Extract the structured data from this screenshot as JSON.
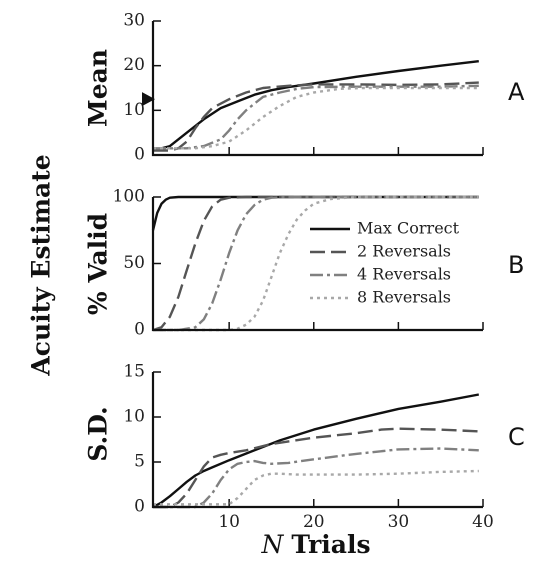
{
  "shared_ylabel": "Acuity Estimate",
  "xlabel_italic": "N",
  "xlabel_bold": "Trials",
  "styles": {
    "Max Correct": {
      "color": "#111111",
      "dash": ""
    },
    "2 Reversals": {
      "color": "#555555",
      "dash": "15,6"
    },
    "4 Reversals": {
      "color": "#808080",
      "dash": "13,4,3,4"
    },
    "8 Reversals": {
      "color": "#a8a8a8",
      "dash": "3,4"
    }
  },
  "legend": {
    "placement": "panel-B right",
    "entries": [
      "Max Correct",
      "2 Reversals",
      "4 Reversals",
      "8 Reversals"
    ]
  },
  "chart_data": [
    {
      "type": "line",
      "panel": "A",
      "ylabel": "Mean",
      "xlim": [
        1,
        40
      ],
      "ylim": [
        0,
        30
      ],
      "xticks": [
        10,
        20,
        30,
        40
      ],
      "yticks": [
        0,
        10,
        20,
        30
      ],
      "marker": {
        "shape": "triangle",
        "y": 12.5
      },
      "series": [
        {
          "name": "Max Correct",
          "x": [
            1,
            3,
            5,
            7,
            9,
            11,
            13,
            15,
            17,
            20,
            25,
            30,
            35,
            39.5
          ],
          "y": [
            1,
            2,
            5,
            8,
            10.5,
            12,
            13.5,
            14.5,
            15.2,
            16,
            17.5,
            18.8,
            20,
            21
          ]
        },
        {
          "name": "2 Reversals",
          "x": [
            1,
            3,
            4,
            5,
            6,
            7,
            8,
            10,
            12,
            14,
            17,
            20,
            25,
            30,
            35,
            39.5
          ],
          "y": [
            1,
            1,
            1.5,
            3,
            6,
            8.5,
            10.5,
            12.5,
            14,
            15,
            15.5,
            15.8,
            15.8,
            15.7,
            15.8,
            16.2
          ]
        },
        {
          "name": "4 Reversals",
          "x": [
            1,
            5,
            7,
            9,
            10,
            11,
            12,
            13,
            14,
            16,
            18,
            20,
            25,
            30,
            35,
            39.5
          ],
          "y": [
            1.5,
            1.5,
            2,
            3.5,
            5.5,
            8,
            10,
            11.5,
            13,
            14,
            14.8,
            15.2,
            15.3,
            15.3,
            15.3,
            15.5
          ]
        },
        {
          "name": "8 Reversals",
          "x": [
            1,
            6,
            8,
            10,
            12,
            14,
            16,
            18,
            20,
            23,
            26,
            30,
            35,
            39.5
          ],
          "y": [
            1.5,
            1.5,
            2,
            3,
            5.5,
            8.5,
            11,
            13,
            14,
            14.8,
            15,
            15,
            15,
            15
          ]
        }
      ]
    },
    {
      "type": "line",
      "panel": "B",
      "ylabel": "% Valid",
      "xlim": [
        1,
        40
      ],
      "ylim": [
        0,
        100
      ],
      "xticks": [
        10,
        20,
        30,
        40
      ],
      "yticks": [
        0,
        50,
        100
      ],
      "series": [
        {
          "name": "Max Correct",
          "x": [
            1,
            1.5,
            2,
            2.5,
            3,
            4,
            5,
            10,
            20,
            30,
            39.5
          ],
          "y": [
            75,
            88,
            95,
            98,
            99.5,
            100,
            100,
            100,
            100,
            100,
            100
          ]
        },
        {
          "name": "2 Reversals",
          "x": [
            1,
            2,
            3,
            4,
            5,
            6,
            7,
            8,
            9,
            10,
            12,
            15,
            20,
            30,
            39.5
          ],
          "y": [
            0,
            2,
            10,
            25,
            45,
            65,
            82,
            93,
            98,
            99.5,
            100,
            100,
            100,
            100,
            100
          ]
        },
        {
          "name": "4 Reversals",
          "x": [
            1,
            4,
            6,
            7,
            8,
            9,
            10,
            11,
            12,
            13,
            14,
            15,
            17,
            20,
            30,
            39.5
          ],
          "y": [
            0,
            0,
            2,
            8,
            20,
            38,
            58,
            75,
            87,
            94,
            98,
            99.5,
            100,
            100,
            100,
            100
          ]
        },
        {
          "name": "8 Reversals",
          "x": [
            1,
            10,
            11,
            12,
            13,
            14,
            15,
            16,
            17,
            18,
            19,
            20,
            22,
            25,
            30,
            39.5
          ],
          "y": [
            0,
            0,
            1,
            4,
            10,
            22,
            40,
            58,
            72,
            83,
            90,
            95,
            98.5,
            100,
            100,
            100
          ]
        }
      ]
    },
    {
      "type": "line",
      "panel": "C",
      "ylabel": "S.D.",
      "xlim": [
        1,
        40
      ],
      "ylim": [
        0,
        15
      ],
      "xticks": [
        10,
        20,
        30,
        40
      ],
      "yticks": [
        0,
        5,
        10,
        15
      ],
      "series": [
        {
          "name": "Max Correct",
          "x": [
            1,
            2,
            3,
            4,
            5,
            6,
            7,
            8,
            10,
            13,
            16,
            20,
            25,
            30,
            35,
            39.5
          ],
          "y": [
            0,
            0.5,
            1.2,
            2,
            2.8,
            3.5,
            4,
            4.4,
            5.2,
            6.3,
            7.4,
            8.6,
            9.8,
            10.9,
            11.7,
            12.5
          ]
        },
        {
          "name": "2 Reversals",
          "x": [
            1,
            3,
            4,
            5,
            6,
            7,
            8,
            9,
            10,
            12,
            15,
            20,
            25,
            28,
            30,
            35,
            39.5
          ],
          "y": [
            0,
            0,
            0.5,
            1.5,
            3,
            4.5,
            5.5,
            5.8,
            6,
            6.3,
            7,
            7.7,
            8.2,
            8.6,
            8.7,
            8.6,
            8.4
          ]
        },
        {
          "name": "4 Reversals",
          "x": [
            1,
            6,
            7,
            8,
            9,
            10,
            11,
            12,
            13,
            14,
            15,
            17,
            20,
            25,
            30,
            35,
            39.5
          ],
          "y": [
            0,
            0,
            0.5,
            1.5,
            3,
            4.2,
            4.8,
            5,
            5.1,
            4.9,
            4.8,
            4.9,
            5.3,
            5.9,
            6.4,
            6.5,
            6.3
          ]
        },
        {
          "name": "8 Reversals",
          "x": [
            1,
            10,
            11,
            12,
            13,
            14,
            15,
            16,
            18,
            20,
            25,
            30,
            35,
            39.5
          ],
          "y": [
            0.3,
            0.3,
            1,
            2,
            3,
            3.5,
            3.7,
            3.7,
            3.6,
            3.6,
            3.6,
            3.7,
            3.9,
            4
          ]
        }
      ]
    }
  ]
}
